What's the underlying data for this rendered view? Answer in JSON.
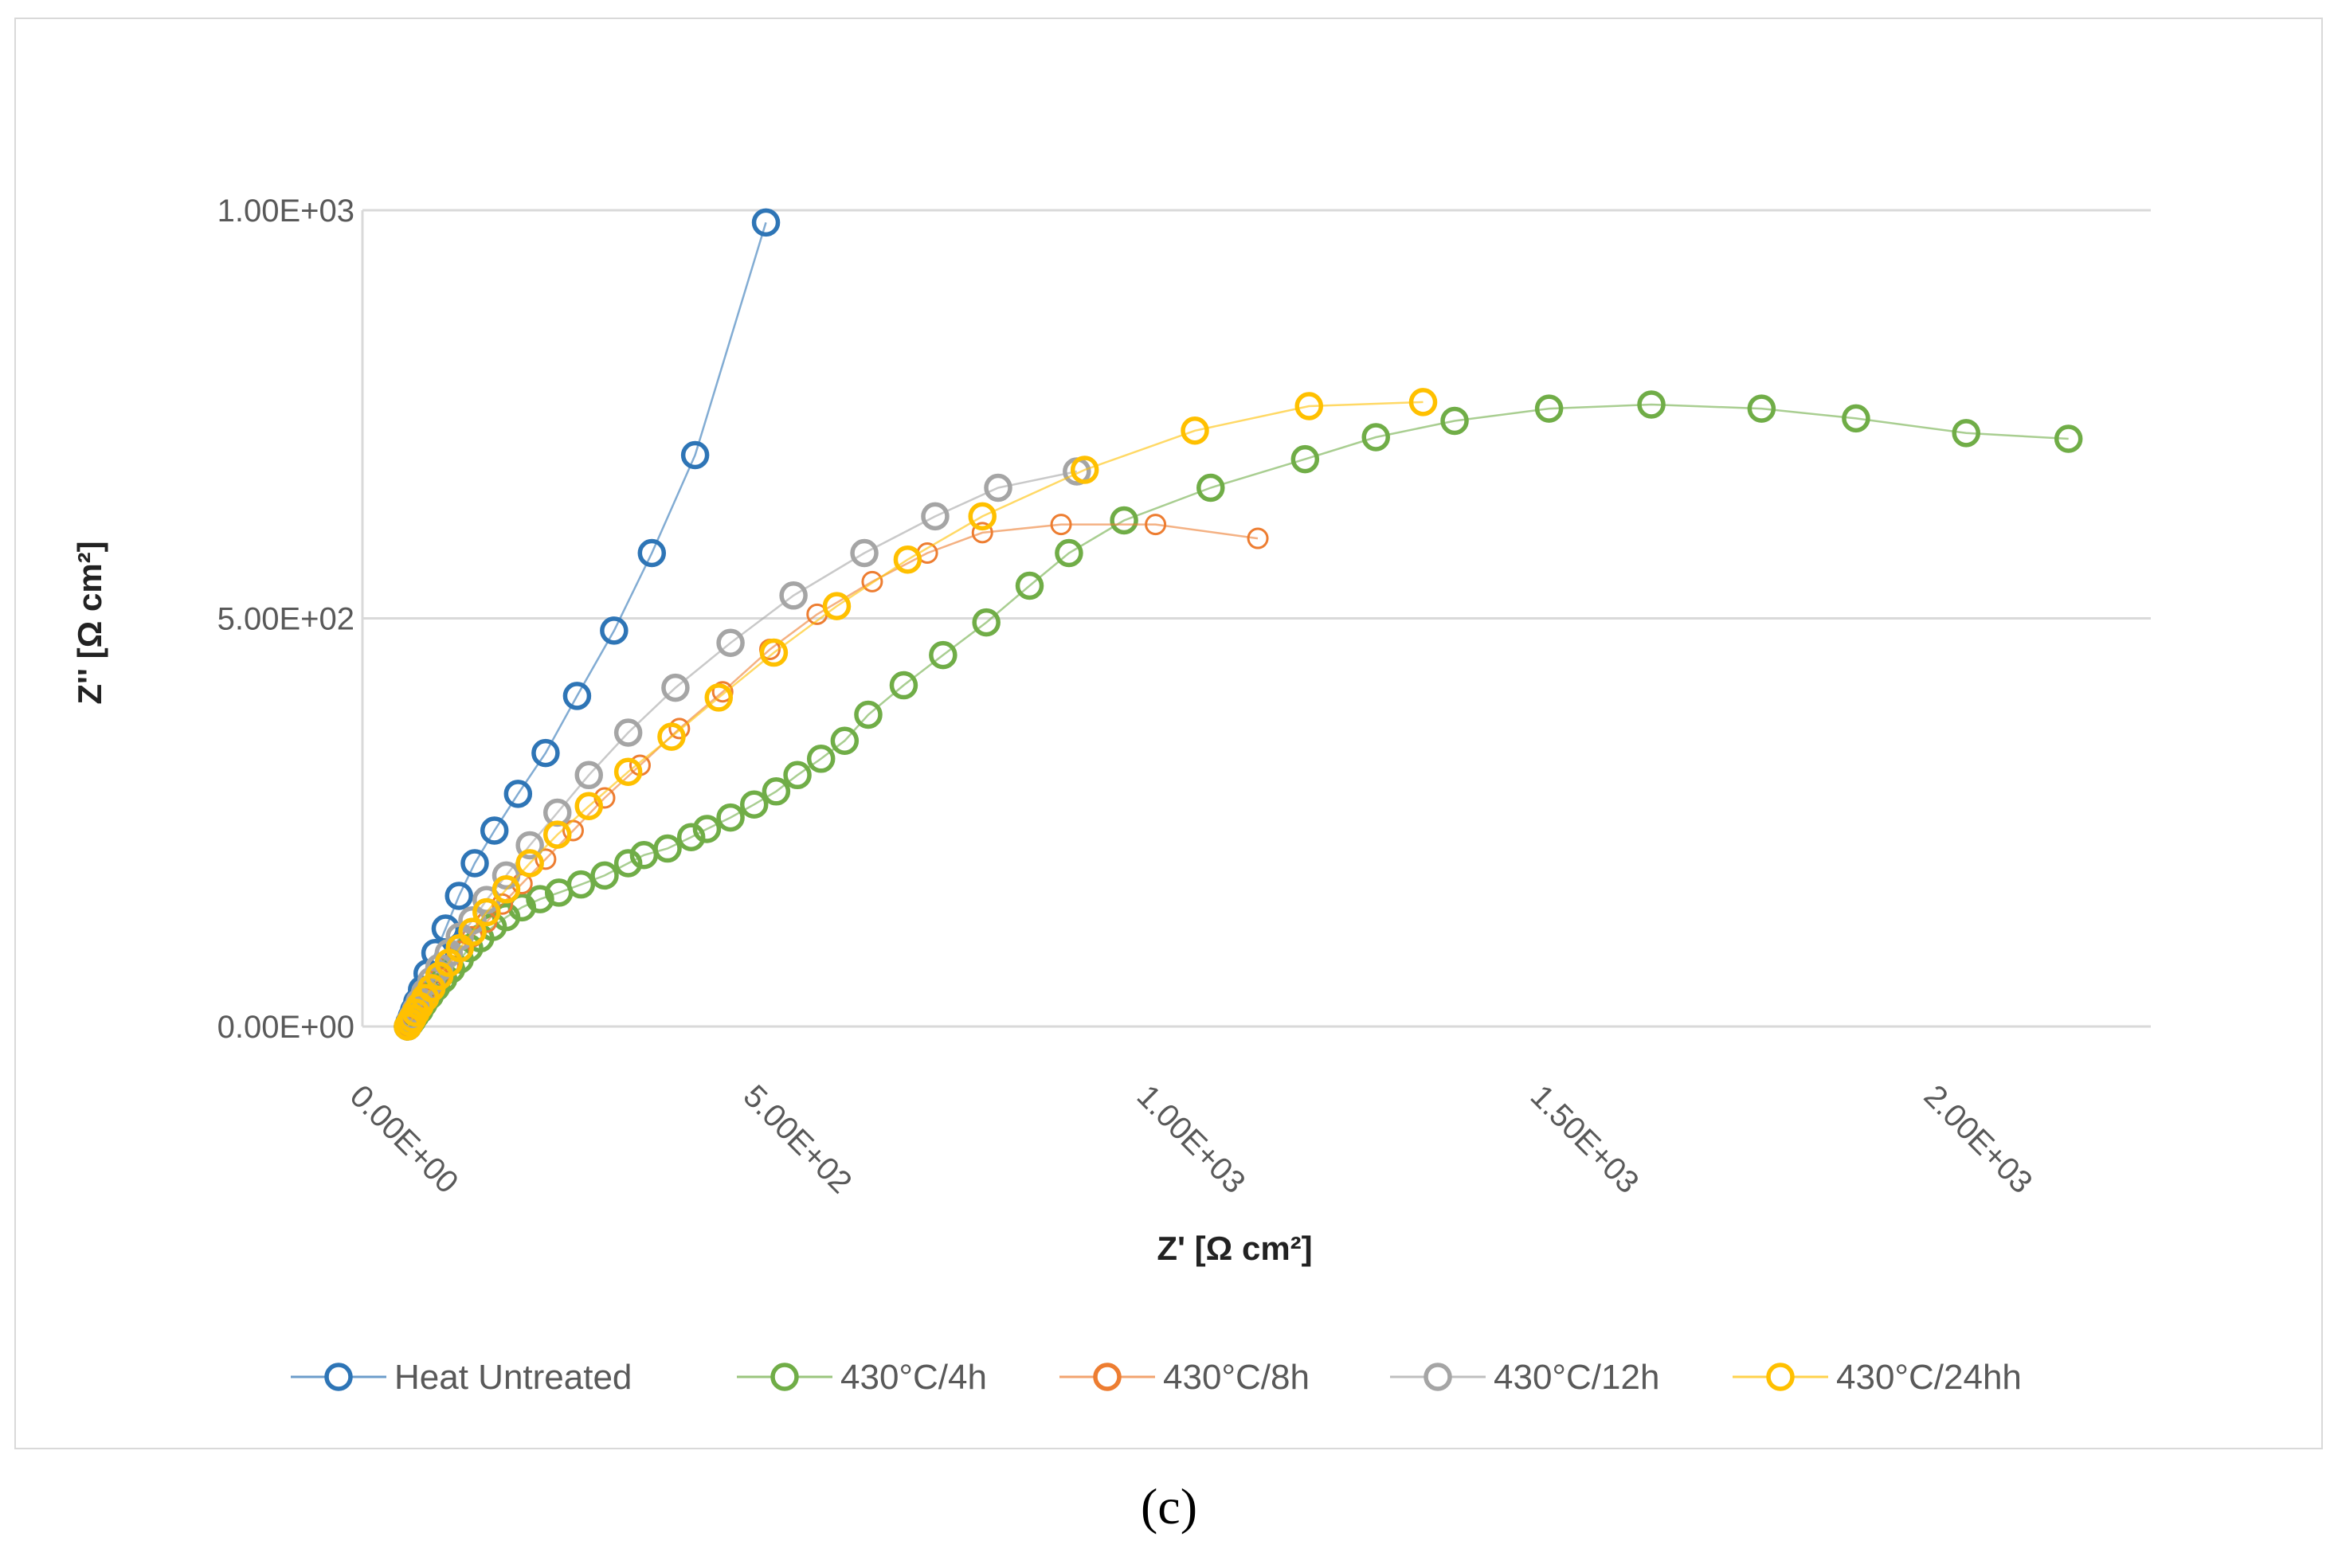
{
  "caption": "(c)",
  "chart_data": {
    "type": "scatter",
    "xlabel": "Z' [Ω cm²]",
    "ylabel": "Z'' [Ω cm²]",
    "xlim": [
      0,
      2300
    ],
    "ylim": [
      0,
      1000
    ],
    "x_ticks": [
      0,
      500,
      1000,
      1500,
      2000
    ],
    "x_tick_labels": [
      "0.00E+00",
      "5.00E+02",
      "1.00E+03",
      "1.50E+03",
      "2.00E+03"
    ],
    "y_ticks": [
      0,
      500,
      1000
    ],
    "y_tick_labels": [
      "0.00E+00",
      "5.00E+02",
      "1.00E+03"
    ],
    "grid": true,
    "legend_position": "bottom",
    "series": [
      {
        "name": "Heat Untreated",
        "color": "#2e75b6",
        "x": [
          0,
          2,
          5,
          8,
          12,
          18,
          25,
          35,
          48,
          65,
          85,
          110,
          140,
          175,
          215,
          262,
          310,
          365,
          455
        ],
        "y": [
          0,
          5,
          12,
          20,
          30,
          45,
          65,
          90,
          120,
          160,
          200,
          240,
          285,
          335,
          405,
          485,
          580,
          700,
          985
        ]
      },
      {
        "name": "430°C/4h",
        "color": "#70ad47",
        "x": [
          0,
          3,
          6,
          10,
          15,
          20,
          28,
          36,
          45,
          55,
          66,
          78,
          92,
          108,
          125,
          145,
          168,
          192,
          220,
          250,
          280,
          300,
          330,
          360,
          380,
          410,
          440,
          468,
          495,
          525,
          555,
          585,
          630,
          680,
          735,
          790,
          840,
          910,
          1020,
          1140,
          1230,
          1330,
          1450,
          1580,
          1720,
          1840,
          1980,
          2110
        ],
        "y": [
          0,
          4,
          8,
          14,
          20,
          28,
          38,
          48,
          58,
          70,
          82,
          96,
          108,
          122,
          134,
          146,
          156,
          164,
          174,
          185,
          200,
          210,
          218,
          232,
          242,
          256,
          272,
          288,
          308,
          328,
          350,
          382,
          418,
          455,
          495,
          540,
          580,
          620,
          660,
          695,
          722,
          742,
          757,
          762,
          757,
          745,
          727,
          720
        ]
      },
      {
        "name": "430°C/8h",
        "color": "#ed7d31",
        "x": [
          0,
          3,
          6,
          10,
          15,
          22,
          30,
          40,
          52,
          66,
          82,
          100,
          120,
          145,
          175,
          210,
          250,
          295,
          345,
          400,
          460,
          520,
          590,
          660,
          730,
          830,
          950,
          1080
        ],
        "y": [
          0,
          5,
          10,
          17,
          25,
          35,
          47,
          60,
          75,
          92,
          110,
          128,
          150,
          175,
          205,
          240,
          280,
          320,
          365,
          410,
          462,
          505,
          545,
          580,
          605,
          615,
          615,
          598
        ]
      },
      {
        "name": "430°C/12h",
        "color": "#a5a5a5",
        "x": [
          0,
          3,
          6,
          10,
          15,
          22,
          30,
          40,
          52,
          66,
          82,
          100,
          125,
          155,
          190,
          230,
          280,
          340,
          410,
          490,
          580,
          670,
          750,
          850
        ],
        "y": [
          0,
          6,
          12,
          20,
          30,
          42,
          56,
          72,
          90,
          110,
          130,
          155,
          185,
          222,
          262,
          308,
          360,
          415,
          470,
          528,
          580,
          625,
          660,
          680
        ]
      },
      {
        "name": "430°C/24hh",
        "color": "#ffc000",
        "x": [
          0,
          3,
          6,
          10,
          15,
          22,
          30,
          40,
          52,
          66,
          82,
          100,
          125,
          155,
          190,
          230,
          280,
          335,
          395,
          465,
          545,
          635,
          730,
          860,
          1000,
          1145,
          1290
        ],
        "y": [
          0,
          5,
          10,
          17,
          25,
          35,
          47,
          62,
          78,
          96,
          116,
          140,
          168,
          200,
          235,
          270,
          312,
          355,
          403,
          458,
          515,
          572,
          625,
          682,
          730,
          760,
          765
        ]
      }
    ]
  }
}
